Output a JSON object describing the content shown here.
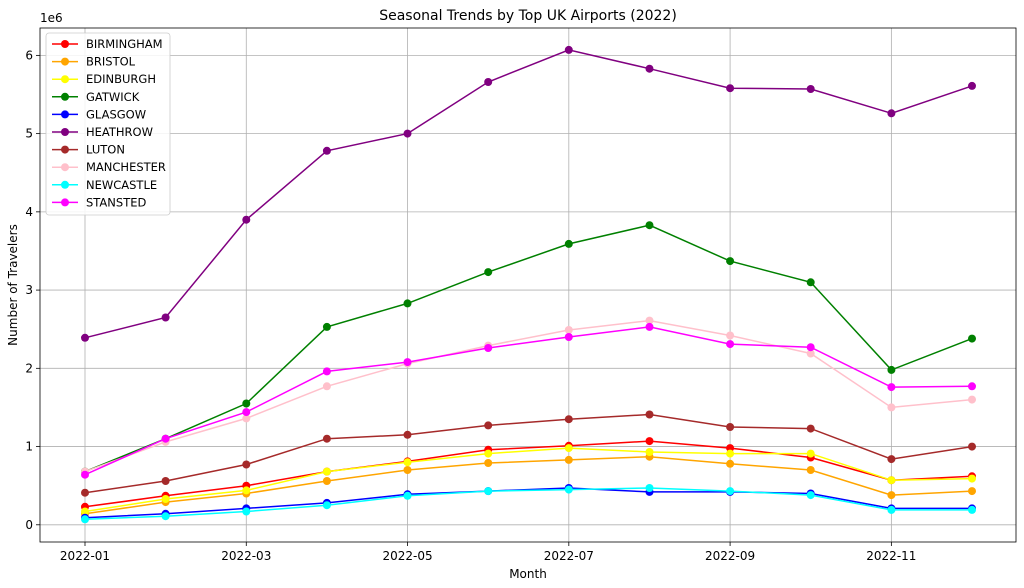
{
  "chart_data": {
    "type": "line",
    "title": "Seasonal Trends by Top UK Airports (2022)",
    "xlabel": "Month",
    "ylabel": "Number of Travelers",
    "y_offset_label": "1e6",
    "grid": true,
    "legend_position": "upper-left",
    "x": [
      "2022-01",
      "2022-02",
      "2022-03",
      "2022-04",
      "2022-05",
      "2022-06",
      "2022-07",
      "2022-08",
      "2022-09",
      "2022-10",
      "2022-11",
      "2022-12"
    ],
    "x_ticks": [
      "2022-01",
      "2022-03",
      "2022-05",
      "2022-07",
      "2022-09",
      "2022-11"
    ],
    "y_ticks": [
      0,
      1,
      2,
      3,
      4,
      5,
      6
    ],
    "ylim": [
      -0.22,
      6.35
    ],
    "series": [
      {
        "name": "BIRMINGHAM",
        "color": "#ff0000",
        "values": [
          0.23,
          0.37,
          0.5,
          0.68,
          0.81,
          0.96,
          1.01,
          1.07,
          0.98,
          0.86,
          0.57,
          0.62
        ]
      },
      {
        "name": "BRISTOL",
        "color": "#ffa500",
        "values": [
          0.14,
          0.29,
          0.4,
          0.56,
          0.7,
          0.79,
          0.83,
          0.87,
          0.78,
          0.7,
          0.38,
          0.43
        ]
      },
      {
        "name": "EDINBURGH",
        "color": "#ffff00",
        "values": [
          0.17,
          0.33,
          0.44,
          0.68,
          0.8,
          0.91,
          0.98,
          0.93,
          0.91,
          0.91,
          0.57,
          0.59
        ]
      },
      {
        "name": "GATWICK",
        "color": "#008000",
        "values": [
          0.68,
          1.1,
          1.55,
          2.53,
          2.83,
          3.23,
          3.59,
          3.83,
          3.37,
          3.1,
          1.98,
          2.38
        ]
      },
      {
        "name": "GLASGOW",
        "color": "#0000ff",
        "values": [
          0.09,
          0.14,
          0.21,
          0.28,
          0.39,
          0.43,
          0.47,
          0.42,
          0.42,
          0.4,
          0.21,
          0.21
        ]
      },
      {
        "name": "HEATHROW",
        "color": "#800080",
        "values": [
          2.39,
          2.65,
          3.9,
          4.78,
          5.0,
          5.66,
          6.07,
          5.83,
          5.58,
          5.57,
          5.26,
          5.61
        ]
      },
      {
        "name": "LUTON",
        "color": "#a52a2a",
        "values": [
          0.41,
          0.56,
          0.77,
          1.1,
          1.15,
          1.27,
          1.35,
          1.41,
          1.25,
          1.23,
          0.84,
          1.0
        ]
      },
      {
        "name": "MANCHESTER",
        "color": "#ffc0cb",
        "values": [
          0.68,
          1.06,
          1.36,
          1.77,
          2.06,
          2.29,
          2.49,
          2.61,
          2.42,
          2.19,
          1.5,
          1.6
        ]
      },
      {
        "name": "NEWCASTLE",
        "color": "#00ffff",
        "values": [
          0.07,
          0.11,
          0.17,
          0.25,
          0.37,
          0.43,
          0.45,
          0.47,
          0.43,
          0.38,
          0.19,
          0.19
        ]
      },
      {
        "name": "STANSTED",
        "color": "#ff00ff",
        "values": [
          0.64,
          1.1,
          1.44,
          1.96,
          2.08,
          2.26,
          2.4,
          2.53,
          2.31,
          2.27,
          1.76,
          1.77
        ]
      }
    ]
  }
}
